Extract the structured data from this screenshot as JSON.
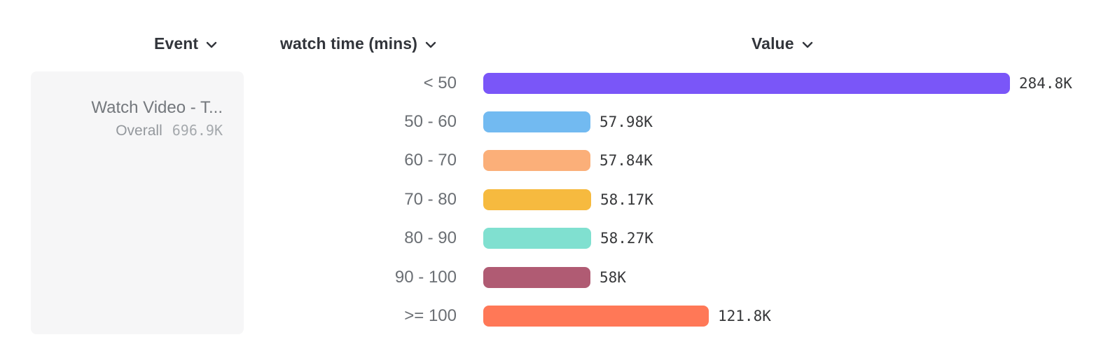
{
  "columns": {
    "event": {
      "label": "Event"
    },
    "breakdown": {
      "label": "watch time (mins)"
    },
    "value": {
      "label": "Value"
    }
  },
  "event_card": {
    "title": "Watch Video - T...",
    "overall_label": "Overall",
    "overall_value": "696.9K"
  },
  "chart_data": {
    "type": "bar",
    "orientation": "horizontal",
    "title": "",
    "xlabel": "Value",
    "ylabel": "watch time (mins)",
    "categories": [
      "< 50",
      "50 - 60",
      "60 - 70",
      "70 - 80",
      "80 - 90",
      "90 - 100",
      ">= 100"
    ],
    "values": [
      284800,
      57980,
      57840,
      58170,
      58270,
      58000,
      121800
    ],
    "value_labels": [
      "284.8K",
      "57.98K",
      "57.84K",
      "58.17K",
      "58.27K",
      "58K",
      "121.8K"
    ],
    "bar_colors": [
      "#7a56f8",
      "#72baf1",
      "#fbaf79",
      "#f6ba3f",
      "#80e0d0",
      "#b05b73",
      "#ff7857"
    ],
    "xlim": [
      0,
      284800
    ],
    "grid": false,
    "legend": false
  },
  "icons": {
    "chevron_down": "chevron-down"
  },
  "ui_colors": {
    "header_text": "#32353b",
    "category_label": "#6b6f74",
    "value_label": "#37383a",
    "card_background": "#f6f6f7",
    "card_title": "#74787d",
    "card_overall": "#94989d"
  }
}
